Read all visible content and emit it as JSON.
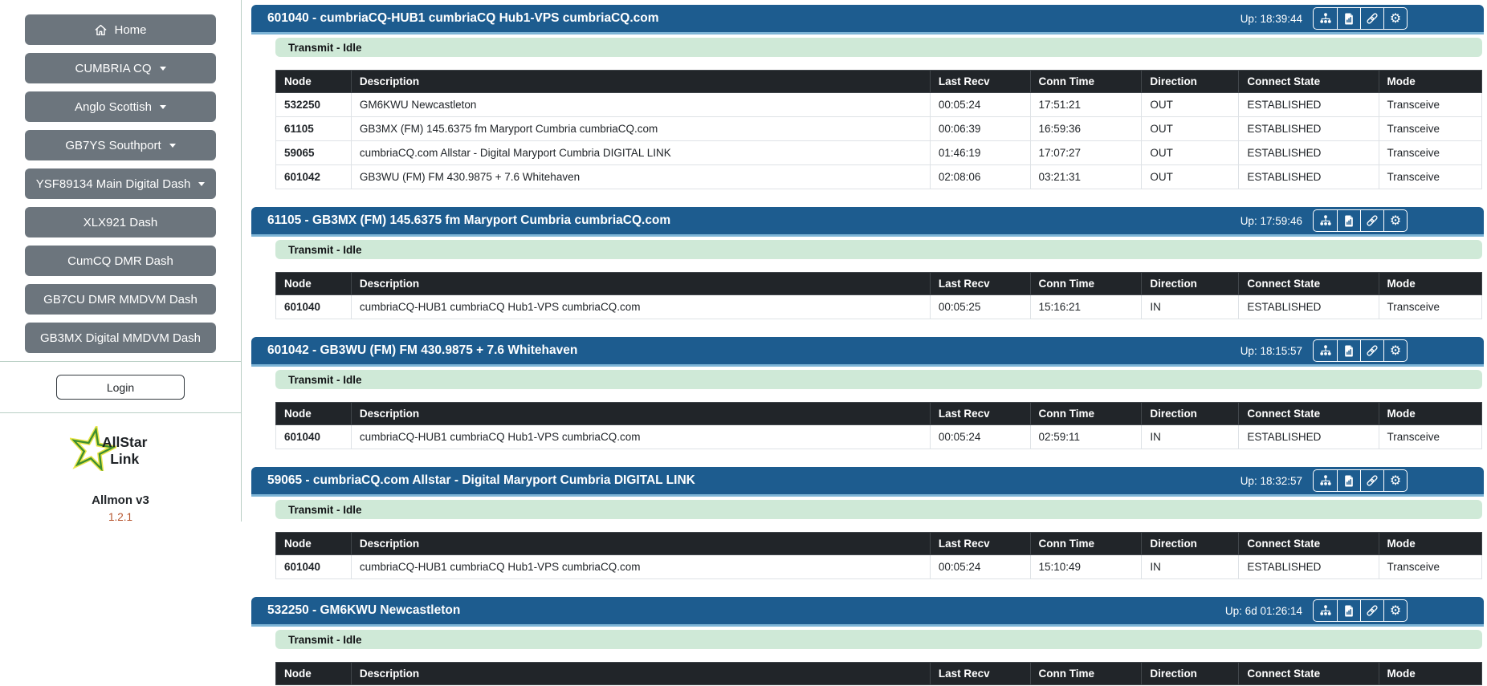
{
  "sidebar": {
    "nav_items": [
      {
        "label": "Home",
        "icon": "home",
        "dropdown": false
      },
      {
        "label": "CUMBRIA CQ",
        "dropdown": true
      },
      {
        "label": "Anglo Scottish",
        "dropdown": true
      },
      {
        "label": "GB7YS Southport",
        "dropdown": true
      },
      {
        "label": "YSF89134 Main Digital Dash",
        "dropdown": true
      },
      {
        "label": "XLX921 Dash",
        "dropdown": false
      },
      {
        "label": "CumCQ DMR Dash",
        "dropdown": false
      },
      {
        "label": "GB7CU DMR MMDVM Dash",
        "dropdown": false
      },
      {
        "label": "GB3MX Digital MMDVM Dash",
        "dropdown": false
      }
    ],
    "login_label": "Login",
    "logo": {
      "line1": "AllStar",
      "line2": "Link"
    },
    "app_name": "Allmon v3",
    "version": "1.2.1"
  },
  "panel_toolbar": {
    "icons": [
      "sitemap-icon",
      "file-bar-graph-icon",
      "link-icon",
      "gear-icon"
    ]
  },
  "table": {
    "headers": [
      "Node",
      "Description",
      "Last Recv",
      "Conn Time",
      "Direction",
      "Connect State",
      "Mode"
    ]
  },
  "panels": [
    {
      "title": "601040 - cumbriaCQ-HUB1 cumbriaCQ Hub1-VPS cumbriaCQ.com",
      "up": "Up: 18:39:44",
      "transmit_status": "Transmit - Idle",
      "rows": [
        [
          "532250",
          "GM6KWU Newcastleton",
          "00:05:24",
          "17:51:21",
          "OUT",
          "ESTABLISHED",
          "Transceive"
        ],
        [
          "61105",
          "GB3MX (FM) 145.6375 fm Maryport Cumbria cumbriaCQ.com",
          "00:06:39",
          "16:59:36",
          "OUT",
          "ESTABLISHED",
          "Transceive"
        ],
        [
          "59065",
          "cumbriaCQ.com Allstar - Digital Maryport Cumbria DIGITAL LINK",
          "01:46:19",
          "17:07:27",
          "OUT",
          "ESTABLISHED",
          "Transceive"
        ],
        [
          "601042",
          "GB3WU (FM) FM 430.9875 + 7.6 Whitehaven",
          "02:08:06",
          "03:21:31",
          "OUT",
          "ESTABLISHED",
          "Transceive"
        ]
      ]
    },
    {
      "title": "61105 - GB3MX (FM) 145.6375 fm Maryport Cumbria cumbriaCQ.com",
      "up": "Up: 17:59:46",
      "transmit_status": "Transmit - Idle",
      "rows": [
        [
          "601040",
          "cumbriaCQ-HUB1 cumbriaCQ Hub1-VPS cumbriaCQ.com",
          "00:05:25",
          "15:16:21",
          "IN",
          "ESTABLISHED",
          "Transceive"
        ]
      ]
    },
    {
      "title": "601042 - GB3WU (FM) FM 430.9875 + 7.6 Whitehaven",
      "up": "Up: 18:15:57",
      "transmit_status": "Transmit - Idle",
      "rows": [
        [
          "601040",
          "cumbriaCQ-HUB1 cumbriaCQ Hub1-VPS cumbriaCQ.com",
          "00:05:24",
          "02:59:11",
          "IN",
          "ESTABLISHED",
          "Transceive"
        ]
      ]
    },
    {
      "title": "59065 - cumbriaCQ.com Allstar - Digital Maryport Cumbria DIGITAL LINK",
      "up": "Up: 18:32:57",
      "transmit_status": "Transmit - Idle",
      "rows": [
        [
          "601040",
          "cumbriaCQ-HUB1 cumbriaCQ Hub1-VPS cumbriaCQ.com",
          "00:05:24",
          "15:10:49",
          "IN",
          "ESTABLISHED",
          "Transceive"
        ]
      ]
    },
    {
      "title": "532250 - GM6KWU Newcastleton",
      "up": "Up: 6d 01:26:14",
      "transmit_status": "Transmit - Idle",
      "rows": []
    }
  ],
  "colors": {
    "header_blue": "#1d5c8f",
    "header_strip": "#7db4d6",
    "status_green": "#cfe9d7",
    "table_header_bg": "#212529",
    "table_border": "#dee2e6",
    "sidebar_button": "#6c757d",
    "text_dark": "#212529",
    "version_orange": "#b5522a",
    "divider": "#b9cfc5",
    "white": "#ffffff"
  }
}
